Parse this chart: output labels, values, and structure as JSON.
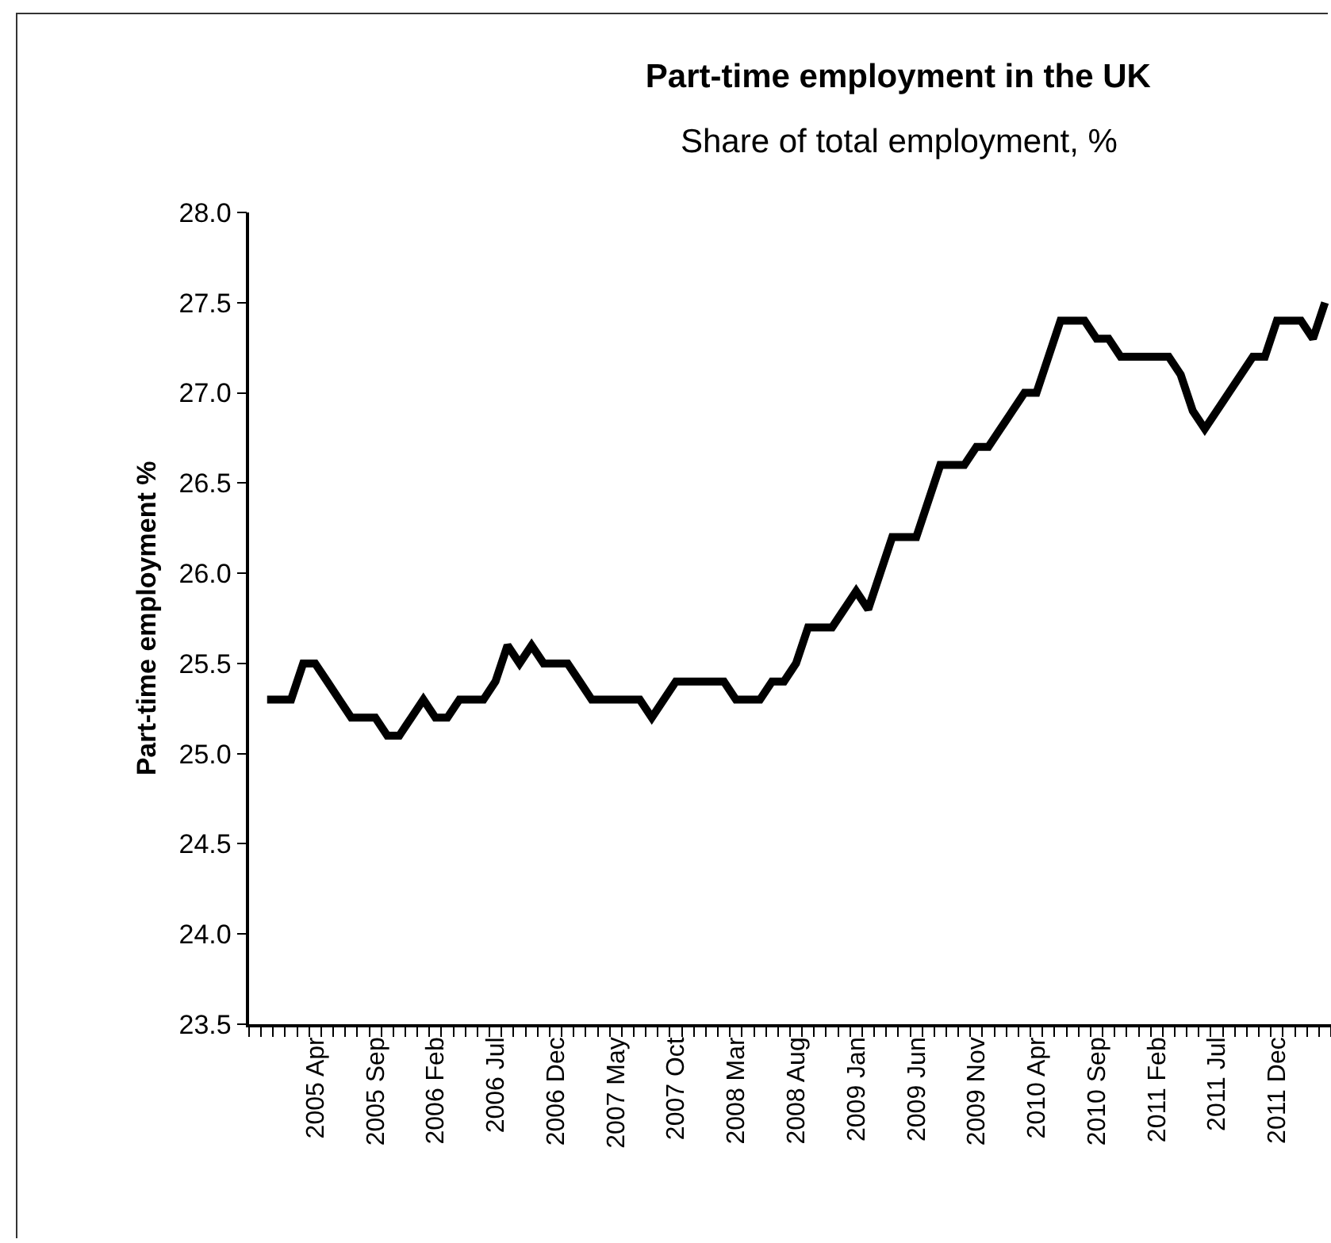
{
  "chart_data": {
    "type": "line",
    "title": "Part-time employment in the UK",
    "subtitle": "Share of total employment, %",
    "ylabel": "Part-time employment %",
    "categories": [
      null,
      null,
      null,
      null,
      null,
      "2005 Apr",
      null,
      null,
      null,
      null,
      "2005 Sep",
      null,
      null,
      null,
      null,
      "2006 Feb",
      null,
      null,
      null,
      null,
      "2006 Jul",
      null,
      null,
      null,
      null,
      "2006 Dec",
      null,
      null,
      null,
      null,
      "2007 May",
      null,
      null,
      null,
      null,
      "2007 Oct",
      null,
      null,
      null,
      null,
      "2008 Mar",
      null,
      null,
      null,
      null,
      "2008 Aug",
      null,
      null,
      null,
      null,
      "2009 Jan",
      null,
      null,
      null,
      null,
      "2009 Jun",
      null,
      null,
      null,
      null,
      "2009 Nov",
      null,
      null,
      null,
      null,
      "2010 Apr",
      null,
      null,
      null,
      null,
      "2010 Sep",
      null,
      null,
      null,
      null,
      "2011 Feb",
      null,
      null,
      null,
      null,
      "2011 Jul",
      null,
      null,
      null,
      null,
      "2011 Dec",
      null,
      null,
      null,
      null
    ],
    "values": [
      null,
      25.3,
      25.3,
      25.3,
      25.5,
      25.5,
      25.4,
      25.3,
      25.2,
      25.2,
      25.2,
      25.1,
      25.1,
      25.2,
      25.3,
      25.2,
      25.2,
      25.3,
      25.3,
      25.3,
      25.4,
      25.6,
      25.5,
      25.6,
      25.5,
      25.5,
      25.5,
      25.4,
      25.3,
      25.3,
      25.3,
      25.3,
      25.3,
      25.2,
      25.3,
      25.4,
      25.4,
      25.4,
      25.4,
      25.4,
      25.3,
      25.3,
      25.3,
      25.4,
      25.4,
      25.5,
      25.7,
      25.7,
      25.7,
      25.8,
      25.9,
      25.8,
      26.0,
      26.2,
      26.2,
      26.2,
      26.4,
      26.6,
      26.6,
      26.6,
      26.7,
      26.7,
      26.8,
      26.9,
      27.0,
      27.0,
      27.2,
      27.4,
      27.4,
      27.4,
      27.3,
      27.3,
      27.2,
      27.2,
      27.2,
      27.2,
      27.2,
      27.1,
      26.9,
      26.8,
      26.9,
      27.0,
      27.1,
      27.2,
      27.2,
      27.4,
      27.4,
      27.4,
      27.3,
      27.5
    ],
    "color": "#000000",
    "ylim": [
      23.5,
      28
    ],
    "yticks": [
      {
        "value": 23.5,
        "label": "23.5"
      },
      {
        "value": 24,
        "label": "24.0"
      },
      {
        "value": 24.5,
        "label": "24.5"
      },
      {
        "value": 25,
        "label": "25.0"
      },
      {
        "value": 25.5,
        "label": "25.5"
      },
      {
        "value": 26,
        "label": "26.0"
      },
      {
        "value": 26.5,
        "label": "26.5"
      },
      {
        "value": 27,
        "label": "27.0"
      },
      {
        "value": 27.5,
        "label": "27.5"
      },
      {
        "value": 28,
        "label": "28.0"
      }
    ]
  }
}
